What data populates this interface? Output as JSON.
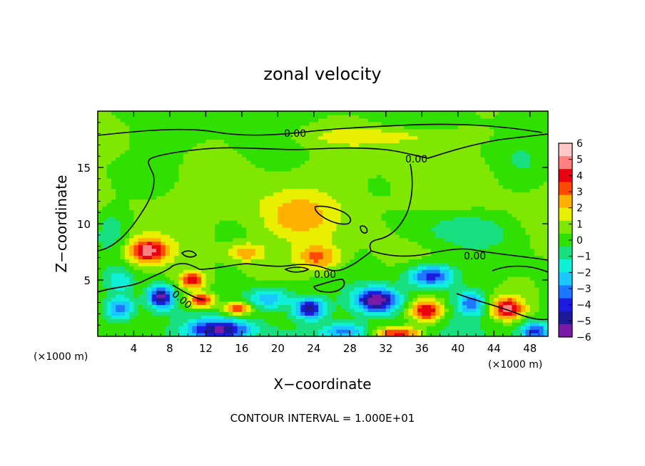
{
  "chart_data": {
    "type": "heatmap",
    "title": "zonal velocity",
    "xlabel": "X−coordinate",
    "ylabel": "Z−coordinate",
    "x_unit_left": "(×1000 m)",
    "x_unit_right": "(×1000 m)",
    "x_ticks": [
      4,
      8,
      12,
      16,
      20,
      24,
      28,
      32,
      36,
      40,
      44,
      48
    ],
    "y_ticks": [
      5,
      10,
      15
    ],
    "xlim": [
      0,
      50
    ],
    "ylim": [
      0,
      20
    ],
    "colorbar": {
      "min": -6,
      "max": 6,
      "tick_labels": [
        "6",
        "5",
        "4",
        "3",
        "2",
        "1",
        "0",
        "−1",
        "−2",
        "−3",
        "−4",
        "−5",
        "−6"
      ],
      "colors": [
        "#7a1aa8",
        "#1a1a9a",
        "#1c1ce0",
        "#1e78ff",
        "#18c8ff",
        "#10f0d8",
        "#18e080",
        "#30e000",
        "#80e800",
        "#e8f000",
        "#ffb000",
        "#ff4a00",
        "#e80010",
        "#ff8080",
        "#ffc8c8"
      ]
    },
    "contour_label": "0.00",
    "footer": "CONTOUR INTERVAL = 1.000E+01",
    "features": [
      {
        "x": 5.5,
        "z": 7.6,
        "value": 4.2,
        "sx": 2.2,
        "sz": 1.1
      },
      {
        "x": 10.5,
        "z": 5.0,
        "value": 3.8,
        "sx": 1.5,
        "sz": 0.8
      },
      {
        "x": 11.5,
        "z": 3.2,
        "value": 4.5,
        "sx": 1.4,
        "sz": 0.7
      },
      {
        "x": 15.5,
        "z": 2.5,
        "value": 3.8,
        "sx": 1.6,
        "sz": 0.6
      },
      {
        "x": 7.0,
        "z": 3.5,
        "value": -5.5,
        "sx": 1.4,
        "sz": 1.0
      },
      {
        "x": 2.5,
        "z": 2.5,
        "value": -3.5,
        "sx": 1.5,
        "sz": 1.0
      },
      {
        "x": 13.5,
        "z": 0.6,
        "value": -5.0,
        "sx": 3.5,
        "sz": 0.9
      },
      {
        "x": 19.0,
        "z": 3.4,
        "value": -3.0,
        "sx": 2.5,
        "sz": 1.0
      },
      {
        "x": 23.5,
        "z": 2.5,
        "value": -5.0,
        "sx": 1.6,
        "sz": 0.9
      },
      {
        "x": 31.0,
        "z": 3.2,
        "value": -6.0,
        "sx": 2.4,
        "sz": 1.1
      },
      {
        "x": 37.0,
        "z": 5.4,
        "value": -4.5,
        "sx": 2.6,
        "sz": 1.0
      },
      {
        "x": 36.5,
        "z": 2.3,
        "value": 4.8,
        "sx": 1.8,
        "sz": 1.0
      },
      {
        "x": 45.5,
        "z": 2.5,
        "value": 4.5,
        "sx": 1.8,
        "sz": 1.0
      },
      {
        "x": 41.5,
        "z": 3.0,
        "value": -3.5,
        "sx": 1.5,
        "sz": 1.0
      },
      {
        "x": 48.5,
        "z": 0.5,
        "value": -4.0,
        "sx": 1.5,
        "sz": 0.8
      },
      {
        "x": 33.5,
        "z": 0.3,
        "value": 4.0,
        "sx": 2.5,
        "sz": 0.5
      },
      {
        "x": 27.5,
        "z": 0.5,
        "value": -3.0,
        "sx": 2.5,
        "sz": 0.7
      },
      {
        "x": 16.5,
        "z": 7.5,
        "value": 2.5,
        "sx": 2.0,
        "sz": 0.8
      },
      {
        "x": 24.5,
        "z": 7.0,
        "value": 2.8,
        "sx": 2.5,
        "sz": 1.2
      },
      {
        "x": 22.0,
        "z": 10.5,
        "value": 1.5,
        "sx": 4.0,
        "sz": 2.0
      },
      {
        "x": 32.0,
        "z": 17.8,
        "value": 1.3,
        "sx": 9.0,
        "sz": 0.8
      },
      {
        "x": 1.5,
        "z": 9.5,
        "value": -1.5,
        "sx": 2.0,
        "sz": 2.0
      },
      {
        "x": 40.0,
        "z": 9.5,
        "value": -1.4,
        "sx": 6.0,
        "sz": 1.8
      },
      {
        "x": 8.0,
        "z": 15.0,
        "value": -0.5,
        "sx": 4.0,
        "sz": 3.0
      },
      {
        "x": 47.0,
        "z": 15.0,
        "value": -0.6,
        "sx": 3.0,
        "sz": 3.0
      },
      {
        "x": 2.5,
        "z": 5.0,
        "value": -2.0,
        "sx": 1.5,
        "sz": 1.0
      }
    ]
  }
}
